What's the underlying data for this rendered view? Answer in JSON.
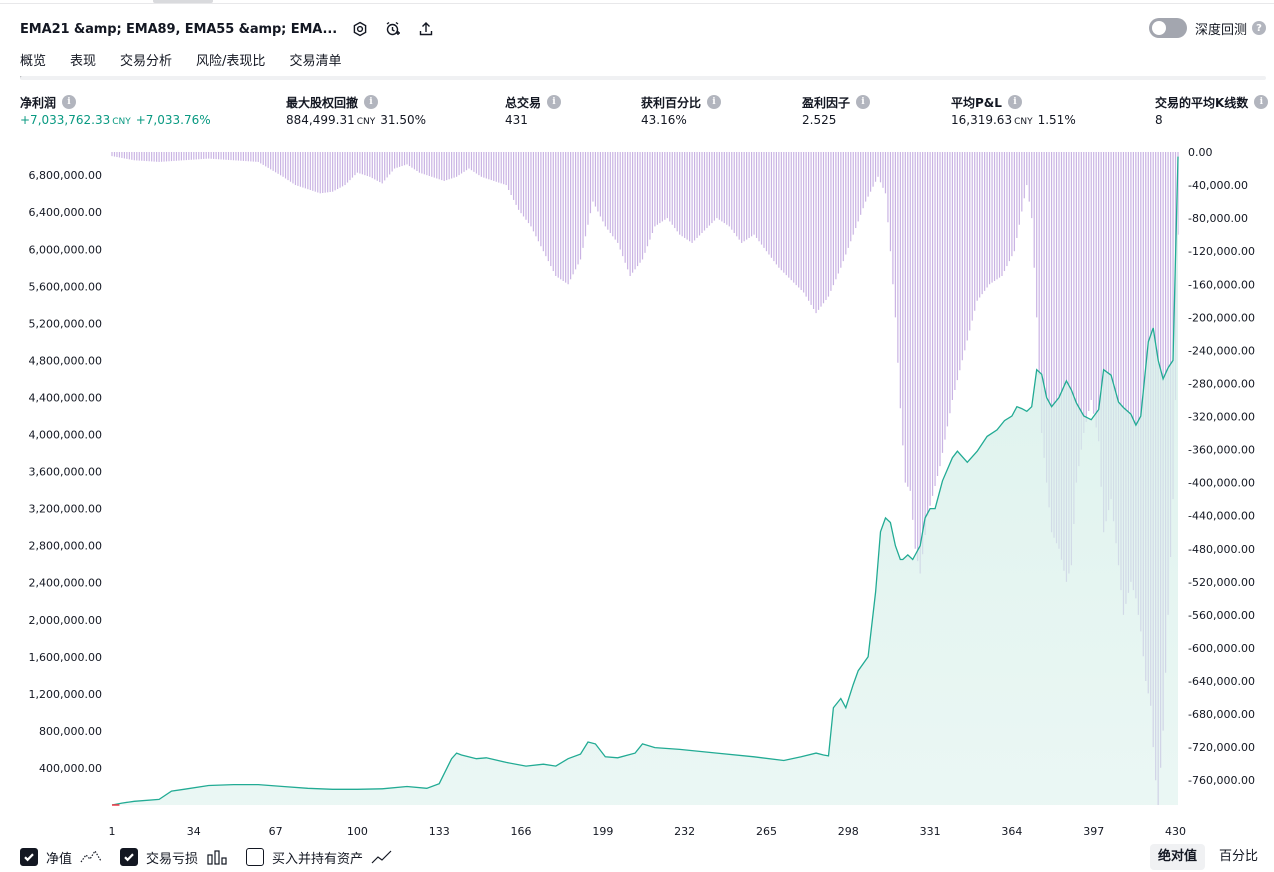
{
  "header": {
    "title": "EMA21 &amp; EMA89, EMA55 &amp; EMA...",
    "icons": [
      "settings-icon",
      "alarm-add-icon",
      "share-icon"
    ],
    "deep_backtest_label": "深度回测"
  },
  "tabs": [
    {
      "label": "概览",
      "active": true
    },
    {
      "label": "表现",
      "active": false
    },
    {
      "label": "交易分析",
      "active": false
    },
    {
      "label": "风险/表现比",
      "active": false
    },
    {
      "label": "交易清单",
      "active": false
    }
  ],
  "metrics": {
    "net_profit": {
      "label": "净利润",
      "value": "+7,033,762.33",
      "ccy": "CNY",
      "pct": "+7,033.76%"
    },
    "max_drawdown": {
      "label": "最大股权回撤",
      "value": "884,499.31",
      "ccy": "CNY",
      "pct": "31.50%"
    },
    "total_trades": {
      "label": "总交易",
      "value": "431"
    },
    "win_rate": {
      "label": "获利百分比",
      "value": "43.16%"
    },
    "profit_factor": {
      "label": "盈利因子",
      "value": "2.525"
    },
    "avg_pnl": {
      "label": "平均P&L",
      "value": "16,319.63",
      "ccy": "CNY",
      "pct": "1.51%"
    },
    "avg_bars": {
      "label": "交易的平均K线数",
      "value": "8"
    }
  },
  "chart_data": {
    "type": "area",
    "x_ticks": [
      "1",
      "34",
      "67",
      "100",
      "133",
      "166",
      "199",
      "232",
      "265",
      "298",
      "331",
      "364",
      "397",
      "430"
    ],
    "left_axis_ticks": [
      "6,800,000.00",
      "6,400,000.00",
      "6,000,000.00",
      "5,600,000.00",
      "5,200,000.00",
      "4,800,000.00",
      "4,400,000.00",
      "4,000,000.00",
      "3,600,000.00",
      "3,200,000.00",
      "2,800,000.00",
      "2,400,000.00",
      "2,000,000.00",
      "1,600,000.00",
      "1,200,000.00",
      "800,000.00",
      "400,000.00"
    ],
    "right_axis_ticks": [
      "0.00",
      "-40,000.00",
      "-80,000.00",
      "-120,000.00",
      "-160,000.00",
      "-200,000.00",
      "-240,000.00",
      "-280,000.00",
      "-320,000.00",
      "-360,000.00",
      "-400,000.00",
      "-440,000.00",
      "-480,000.00",
      "-520,000.00",
      "-560,000.00",
      "-600,000.00",
      "-640,000.00",
      "-680,000.00",
      "-720,000.00",
      "-760,000.00"
    ],
    "left_range": [
      0,
      7050000
    ],
    "right_range": [
      -790000,
      0
    ],
    "equity_series": {
      "x": [
        1,
        5,
        10,
        20,
        25,
        30,
        40,
        50,
        60,
        70,
        80,
        90,
        100,
        110,
        120,
        128,
        133,
        138,
        140,
        142,
        148,
        152,
        160,
        168,
        175,
        180,
        185,
        190,
        193,
        196,
        200,
        205,
        212,
        215,
        220,
        230,
        245,
        260,
        272,
        279,
        285,
        288,
        290,
        292,
        295,
        297,
        300,
        302,
        306,
        309,
        311,
        313,
        315,
        317,
        319,
        320,
        322,
        324,
        327,
        329,
        331,
        333,
        336,
        340,
        342,
        346,
        350,
        354,
        358,
        361,
        364,
        366,
        368,
        370,
        372,
        374,
        376,
        378,
        380,
        383,
        386,
        388,
        390,
        393,
        396,
        399,
        401,
        404,
        407,
        409,
        412,
        414,
        416,
        419,
        421,
        423,
        425,
        427,
        429,
        431
      ],
      "y": [
        0,
        20000,
        40000,
        60000,
        150000,
        170000,
        210000,
        220000,
        220000,
        200000,
        180000,
        170000,
        170000,
        175000,
        200000,
        180000,
        230000,
        500000,
        560000,
        540000,
        500000,
        510000,
        460000,
        420000,
        440000,
        420000,
        500000,
        550000,
        680000,
        660000,
        520000,
        510000,
        560000,
        660000,
        620000,
        600000,
        560000,
        520000,
        480000,
        520000,
        560000,
        540000,
        530000,
        1050000,
        1150000,
        1050000,
        1300000,
        1450000,
        1600000,
        2300000,
        2950000,
        3100000,
        3050000,
        2800000,
        2650000,
        2650000,
        2700000,
        2650000,
        2800000,
        3100000,
        3200000,
        3200000,
        3500000,
        3750000,
        3820000,
        3700000,
        3820000,
        3980000,
        4050000,
        4150000,
        4200000,
        4300000,
        4280000,
        4250000,
        4300000,
        4700000,
        4650000,
        4400000,
        4300000,
        4400000,
        4580000,
        4480000,
        4340000,
        4200000,
        4160000,
        4270000,
        4700000,
        4640000,
        4350000,
        4290000,
        4220000,
        4100000,
        4200000,
        5000000,
        5150000,
        4800000,
        4600000,
        4720000,
        4800000,
        7000000
      ]
    },
    "drawdown_series": {
      "x": [
        1,
        10,
        20,
        40,
        60,
        70,
        75,
        80,
        85,
        90,
        95,
        100,
        105,
        110,
        115,
        120,
        125,
        130,
        135,
        140,
        145,
        150,
        155,
        160,
        165,
        170,
        175,
        180,
        185,
        190,
        195,
        200,
        205,
        210,
        215,
        220,
        225,
        230,
        235,
        240,
        245,
        250,
        255,
        260,
        265,
        270,
        275,
        280,
        285,
        290,
        295,
        300,
        305,
        310,
        313,
        315,
        317,
        319,
        321,
        323,
        325,
        327,
        330,
        335,
        340,
        345,
        350,
        355,
        360,
        365,
        370,
        372,
        374,
        376,
        378,
        380,
        383,
        386,
        388,
        390,
        393,
        396,
        399,
        401,
        404,
        407,
        409,
        412,
        414,
        416,
        418,
        420,
        421,
        422,
        423,
        425,
        427,
        429,
        430,
        431
      ],
      "y": [
        -5000,
        -10000,
        -12000,
        -8000,
        -12000,
        -30000,
        -40000,
        -45000,
        -50000,
        -48000,
        -40000,
        -25000,
        -30000,
        -38000,
        -20000,
        -15000,
        -25000,
        -30000,
        -35000,
        -30000,
        -20000,
        -30000,
        -35000,
        -40000,
        -70000,
        -90000,
        -120000,
        -150000,
        -160000,
        -130000,
        -60000,
        -90000,
        -110000,
        -150000,
        -130000,
        -90000,
        -80000,
        -100000,
        -110000,
        -95000,
        -80000,
        -90000,
        -110000,
        -100000,
        -120000,
        -140000,
        -155000,
        -170000,
        -195000,
        -175000,
        -140000,
        -100000,
        -60000,
        -30000,
        -50000,
        -120000,
        -200000,
        -310000,
        -400000,
        -410000,
        -480000,
        -510000,
        -440000,
        -380000,
        -300000,
        -240000,
        -180000,
        -160000,
        -150000,
        -120000,
        -40000,
        -80000,
        -200000,
        -340000,
        -400000,
        -460000,
        -480000,
        -520000,
        -500000,
        -400000,
        -340000,
        -300000,
        -350000,
        -460000,
        -420000,
        -500000,
        -560000,
        -520000,
        -540000,
        -580000,
        -640000,
        -670000,
        -720000,
        -760000,
        -790000,
        -700000,
        -560000,
        -420000,
        -300000,
        -100000
      ]
    }
  },
  "legend": {
    "equity_label": "净值",
    "trades_label": "交易亏损",
    "buyhold_label": "买入并持有资产"
  },
  "scale": {
    "absolute_label": "绝对值",
    "percent_label": "百分比"
  },
  "colors": {
    "equity_line": "#22ab94",
    "equity_fill": "#d6efe9",
    "drawdown_bar": "#c9b3e3",
    "accent_positive": "#089981"
  }
}
